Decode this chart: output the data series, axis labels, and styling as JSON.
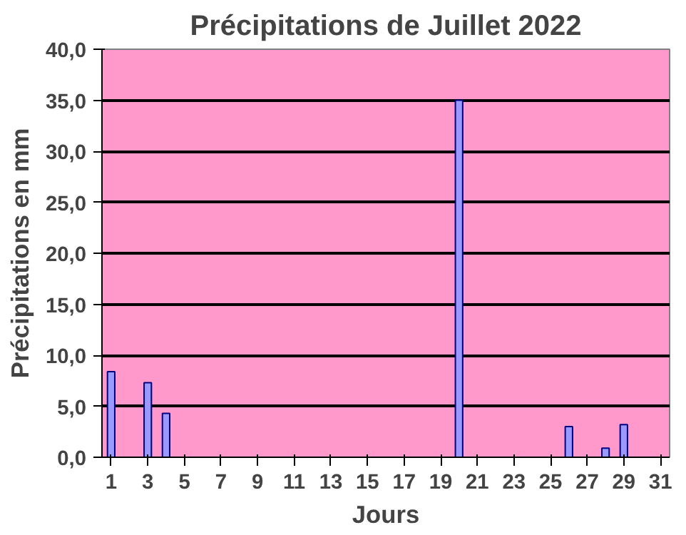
{
  "chart_data": {
    "type": "bar",
    "title": "Précipitations de Juillet 2022",
    "xlabel": "Jours",
    "ylabel": "Précipitations en mm",
    "x": [
      1,
      3,
      4,
      20,
      26,
      28,
      29
    ],
    "xlim": [
      0.5,
      31.5
    ],
    "xticks": [
      1,
      3,
      5,
      7,
      9,
      11,
      13,
      15,
      17,
      19,
      21,
      23,
      25,
      27,
      29,
      31
    ],
    "values": [
      8.4,
      7.3,
      4.3,
      35.0,
      3.0,
      0.9,
      3.2
    ],
    "color": "#9999ff",
    "ylim": [
      0,
      40
    ],
    "yticks": [
      {
        "value": 0,
        "label": "0,0"
      },
      {
        "value": 5,
        "label": "5,0"
      },
      {
        "value": 10,
        "label": "10,0"
      },
      {
        "value": 15,
        "label": "15,0"
      },
      {
        "value": 20,
        "label": "20,0"
      },
      {
        "value": 25,
        "label": "25,0"
      },
      {
        "value": 30,
        "label": "30,0"
      },
      {
        "value": 35,
        "label": "35,0"
      },
      {
        "value": 40,
        "label": "40,0"
      }
    ],
    "grid": "y"
  }
}
